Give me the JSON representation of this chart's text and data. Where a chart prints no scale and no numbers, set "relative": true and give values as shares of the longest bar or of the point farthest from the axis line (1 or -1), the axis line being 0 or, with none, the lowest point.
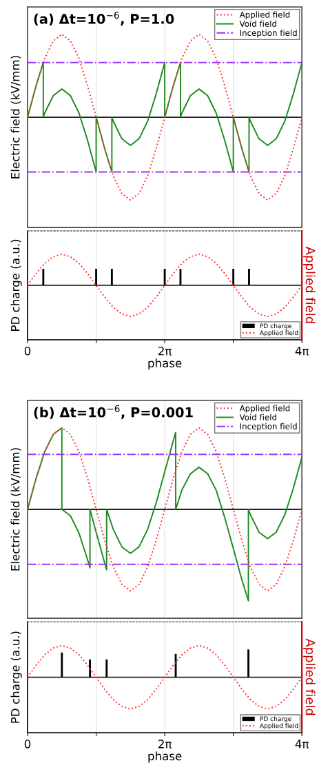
{
  "chart_data": [
    {
      "type": "line",
      "title": "(a) Δt=10$^{−6}$, P=1.0",
      "ylabel": "Electric field (kV/mm)",
      "relative": true,
      "legend": "top right",
      "grid": "x",
      "tick_labels": false,
      "xlim": [
        0,
        12.566
      ],
      "xticks": [
        {
          "value": 3.1416,
          "label": null
        },
        {
          "value": 6.2832,
          "label": null
        },
        {
          "value": 9.4248,
          "label": null
        }
      ],
      "x": [
        0,
        0.393,
        0.785,
        1.178,
        1.571,
        1.963,
        2.356,
        2.749,
        3.142,
        3.534,
        3.927,
        4.32,
        4.712,
        5.105,
        5.498,
        5.89,
        6.283,
        6.676,
        7.069,
        7.461,
        7.854,
        8.247,
        8.639,
        9.032,
        9.425,
        9.817,
        10.21,
        10.603,
        10.996,
        11.388,
        11.781,
        12.174,
        12.566
      ],
      "series": [
        {
          "name": "Applied field",
          "color": "#ff3030",
          "line_style": "dotted",
          "values": [
            0,
            0.38,
            0.71,
            0.92,
            1,
            0.92,
            0.71,
            0.38,
            0,
            -0.38,
            -0.71,
            -0.92,
            -1,
            -0.92,
            -0.71,
            -0.38,
            0,
            0.38,
            0.71,
            0.92,
            1,
            0.92,
            0.71,
            0.38,
            0,
            -0.38,
            -0.71,
            -0.92,
            -1,
            -0.92,
            -0.71,
            -0.38,
            0
          ]
        },
        {
          "name": "Void field",
          "color": "#1f8a1f",
          "line_style": "solid",
          "x": [
            0,
            0.393,
            0.721,
            0.721,
            0.785,
            1.178,
            1.571,
            1.963,
            2.356,
            2.749,
            3.142,
            3.142,
            3.534,
            3.862,
            3.862,
            3.927,
            4.32,
            4.712,
            5.105,
            5.498,
            5.89,
            6.283,
            6.283,
            6.676,
            7.004,
            7.004,
            7.069,
            7.461,
            7.854,
            8.247,
            8.639,
            9.032,
            9.425,
            9.425,
            9.817,
            10.145,
            10.145,
            10.21,
            10.603,
            10.996,
            11.388,
            11.781,
            12.174,
            12.566
          ],
          "values": [
            0,
            0.38,
            0.66,
            0,
            0.05,
            0.26,
            0.34,
            0.26,
            0.05,
            -0.28,
            -0.66,
            0,
            -0.38,
            -0.66,
            0,
            -0.05,
            -0.26,
            -0.34,
            -0.26,
            -0.05,
            0.28,
            0.66,
            0,
            0.38,
            0.66,
            0,
            0.05,
            0.26,
            0.34,
            0.26,
            0.05,
            -0.28,
            -0.66,
            0,
            -0.38,
            -0.66,
            0,
            -0.05,
            -0.26,
            -0.34,
            -0.26,
            -0.05,
            0.28,
            0.66
          ]
        },
        {
          "name": "Inception field",
          "color": "#9b30ff",
          "line_style": "dashdot",
          "x": [
            0,
            12.566
          ],
          "values": [
            0.66,
            0.66
          ]
        },
        {
          "color": "#9b30ff",
          "line_style": "dashdot",
          "x": [
            0,
            12.566
          ],
          "values": [
            -0.66,
            -0.66
          ]
        }
      ]
    },
    {
      "type": "bar",
      "ylabel": "PD charge (a.u.)",
      "y2label": "Applied field",
      "xlabel": "phase",
      "relative": true,
      "legend": "bottom right",
      "grid": "x",
      "tick_labels": "x",
      "xlim": [
        0,
        12.566
      ],
      "xticks": [
        0,
        {
          "value": 3.1416,
          "label": null
        },
        {
          "value": 6.2832,
          "label": "2π"
        },
        {
          "value": 9.4248,
          "label": null
        },
        {
          "value": 12.566,
          "label": "4π"
        }
      ],
      "x": [
        0,
        0.393,
        0.785,
        1.178,
        1.571,
        1.963,
        2.356,
        2.749,
        3.142,
        3.534,
        3.927,
        4.32,
        4.712,
        5.105,
        5.498,
        5.89,
        6.283,
        6.676,
        7.069,
        7.461,
        7.854,
        8.247,
        8.639,
        9.032,
        9.425,
        9.817,
        10.21,
        10.603,
        10.996,
        11.388,
        11.781,
        12.174,
        12.566
      ],
      "series": [
        {
          "name": "PD charge",
          "color": "#000000",
          "x": [
            0.721,
            3.142,
            3.862,
            6.283,
            7.004,
            9.425,
            10.145
          ],
          "values": [
            1,
            1,
            1,
            1,
            1,
            1,
            1
          ]
        },
        {
          "name": "Applied field",
          "type": "line",
          "axis": "y2",
          "color": "#ff3030",
          "line_style": "dotted",
          "values": [
            0,
            0.38,
            0.71,
            0.92,
            1,
            0.92,
            0.71,
            0.38,
            0,
            -0.38,
            -0.71,
            -0.92,
            -1,
            -0.92,
            -0.71,
            -0.38,
            0,
            0.38,
            0.71,
            0.92,
            1,
            0.92,
            0.71,
            0.38,
            0,
            -0.38,
            -0.71,
            -0.92,
            -1,
            -0.92,
            -0.71,
            -0.38,
            0
          ]
        }
      ]
    },
    {
      "type": "line",
      "title": "(b) Δt=10$^{−6}$, P=0.001",
      "ylabel": "Electric field (kV/mm)",
      "relative": true,
      "legend": "top right",
      "grid": "x",
      "tick_labels": false,
      "xlim": [
        0,
        12.566
      ],
      "xticks": [
        {
          "value": 3.1416,
          "label": null
        },
        {
          "value": 6.2832,
          "label": null
        },
        {
          "value": 9.4248,
          "label": null
        }
      ],
      "x": [
        0,
        0.393,
        0.785,
        1.178,
        1.571,
        1.963,
        2.356,
        2.749,
        3.142,
        3.534,
        3.927,
        4.32,
        4.712,
        5.105,
        5.498,
        5.89,
        6.283,
        6.676,
        7.069,
        7.461,
        7.854,
        8.247,
        8.639,
        9.032,
        9.425,
        9.817,
        10.21,
        10.603,
        10.996,
        11.388,
        11.781,
        12.174,
        12.566
      ],
      "series": [
        {
          "name": "Applied field",
          "color": "#ff3030",
          "line_style": "dotted",
          "values": [
            0,
            0.34,
            0.63,
            0.82,
            0.89,
            0.82,
            0.63,
            0.34,
            0,
            -0.34,
            -0.63,
            -0.82,
            -0.89,
            -0.82,
            -0.63,
            -0.34,
            0,
            0.34,
            0.63,
            0.82,
            0.89,
            0.82,
            0.63,
            0.34,
            0,
            -0.34,
            -0.63,
            -0.82,
            -0.89,
            -0.82,
            -0.63,
            -0.34,
            0
          ]
        },
        {
          "name": "Void field",
          "color": "#1f8a1f",
          "line_style": "solid",
          "x": [
            0,
            0.393,
            0.785,
            1.178,
            1.571,
            1.571,
            1.963,
            2.356,
            2.749,
            2.859,
            2.859,
            3.142,
            3.534,
            3.622,
            3.622,
            3.927,
            4.32,
            4.712,
            5.105,
            5.498,
            5.89,
            6.283,
            6.676,
            6.786,
            6.786,
            7.069,
            7.461,
            7.854,
            8.247,
            8.639,
            9.032,
            9.425,
            9.817,
            10.116,
            10.116,
            10.21,
            10.603,
            10.996,
            11.388,
            11.781,
            12.174,
            12.566
          ],
          "values": [
            0,
            0.34,
            0.63,
            0.82,
            0.89,
            0,
            -0.07,
            -0.26,
            -0.55,
            -0.64,
            0,
            -0.25,
            -0.59,
            -0.66,
            0,
            -0.22,
            -0.41,
            -0.48,
            -0.41,
            -0.22,
            0.07,
            0.41,
            0.75,
            0.84,
            0,
            0.21,
            0.39,
            0.46,
            0.39,
            0.21,
            -0.09,
            -0.43,
            -0.77,
            -1,
            0,
            -0.06,
            -0.25,
            -0.32,
            -0.25,
            -0.06,
            0.23,
            0.57
          ]
        },
        {
          "name": "Inception field",
          "color": "#9b30ff",
          "line_style": "dashdot",
          "x": [
            0,
            12.566
          ],
          "values": [
            0.6,
            0.6
          ]
        },
        {
          "color": "#9b30ff",
          "line_style": "dashdot",
          "x": [
            0,
            12.566
          ],
          "values": [
            -0.6,
            -0.6
          ]
        }
      ]
    },
    {
      "type": "bar",
      "ylabel": "PD charge (a.u.)",
      "y2label": "Applied field",
      "xlabel": "phase",
      "relative": true,
      "legend": "bottom right",
      "grid": "x",
      "tick_labels": "x",
      "xlim": [
        0,
        12.566
      ],
      "xticks": [
        0,
        {
          "value": 3.1416,
          "label": null
        },
        {
          "value": 6.2832,
          "label": "2π"
        },
        {
          "value": 9.4248,
          "label": null
        },
        {
          "value": 12.566,
          "label": "4π"
        }
      ],
      "x": [
        0,
        0.393,
        0.785,
        1.178,
        1.571,
        1.963,
        2.356,
        2.749,
        3.142,
        3.534,
        3.927,
        4.32,
        4.712,
        5.105,
        5.498,
        5.89,
        6.283,
        6.676,
        7.069,
        7.461,
        7.854,
        8.247,
        8.639,
        9.032,
        9.425,
        9.817,
        10.21,
        10.603,
        10.996,
        11.388,
        11.781,
        12.174,
        12.566
      ],
      "series": [
        {
          "name": "PD charge",
          "color": "#000000",
          "x": [
            1.571,
            2.859,
            3.622,
            6.786,
            10.116
          ],
          "values": [
            0.89,
            0.64,
            0.64,
            0.84,
            1
          ]
        },
        {
          "name": "Applied field",
          "type": "line",
          "axis": "y2",
          "color": "#ff3030",
          "line_style": "dotted",
          "values": [
            0,
            0.38,
            0.71,
            0.92,
            1,
            0.92,
            0.71,
            0.38,
            0,
            -0.38,
            -0.71,
            -0.92,
            -1,
            -0.92,
            -0.71,
            -0.38,
            0,
            0.38,
            0.71,
            0.92,
            1,
            0.92,
            0.71,
            0.38,
            0,
            -0.38,
            -0.71,
            -0.92,
            -1,
            -0.92,
            -0.71,
            -0.38,
            0
          ]
        }
      ]
    }
  ]
}
